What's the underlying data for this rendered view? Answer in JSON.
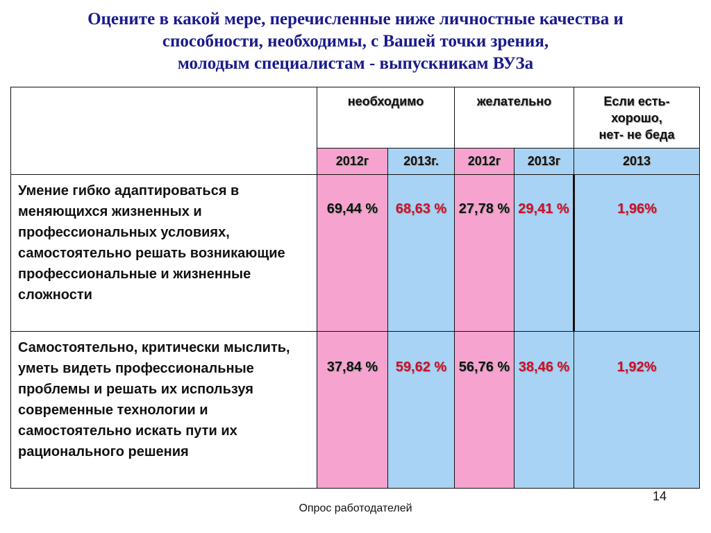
{
  "title": {
    "line1": "Оцените в какой мере, перечисленные ниже личностные качества и",
    "line2": "способности, необходимы, с Вашей точки зрения,",
    "line3": "молодым специалистам - выпускникам ВУЗа"
  },
  "table": {
    "headers": {
      "necessary": "необходимо",
      "desirable": "желательно",
      "optional_line1": "Если есть-",
      "optional_line2": "хорошо,",
      "optional_line3": "нет- не беда"
    },
    "years": [
      "2012г",
      "2013г.",
      "2012г",
      "2013г",
      "2013"
    ],
    "rows": [
      {
        "label": "Умение гибко адаптироваться в меняющихся жизненных и профессиональных условиях, самостоятельно решать возникающие профессиональные и жизненные сложности",
        "nec_2012": "69,44 %",
        "nec_2013": "68,63 %",
        "des_2012": "27,78 %",
        "des_2013": "29,41 %",
        "opt_2013": "1,96%"
      },
      {
        "label": "Самостоятельно, критически мыслить, уметь видеть профессиональные проблемы и решать их используя современные технологии и самостоятельно искать пути их рационального решения",
        "nec_2012": "37,84 %",
        "nec_2013": "59,62 %",
        "des_2012": "56,76 %",
        "des_2013": "38,46 %",
        "opt_2013": "1,92%"
      }
    ]
  },
  "page_number": "14",
  "footer": "Опрос работодателей",
  "colors": {
    "title": "#1a1a8c",
    "pink": "#f7a3cf",
    "blue": "#a9d3f5",
    "red_value": "#c8102e"
  }
}
